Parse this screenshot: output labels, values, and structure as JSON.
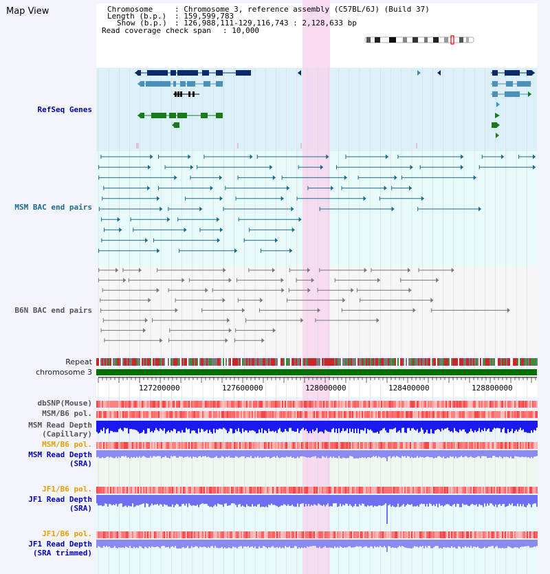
{
  "header": {
    "title": "Map View",
    "chromosome_label": "Chromosome",
    "chromosome_value": ": Chromosome 3, reference assembly (C57BL/6J) (Build 37)",
    "length_label": "Length (b.p.)",
    "length_value": ": 159,599,783",
    "show_label": "Show (b.p.)",
    "show_value": ": 126,988,111-129,116,743 : 2,128,633 bp",
    "coverage_label": "Read coverage check span",
    "coverage_value": ": 10,000"
  },
  "tracks": {
    "refseq": "RefSeq Genes",
    "msm_bac": "MSM BAC end pairs",
    "b6n_bac": "B6N BAC end pairs",
    "repeat": "Repeat",
    "chromosome": "chromosome 3",
    "dbsnp": "dbSNP(Mouse)",
    "msm_b6_pol_1": "MSM/B6 pol.",
    "msm_depth_cap_1": "MSM Read Depth",
    "msm_depth_cap_2": "(Capillary)",
    "msm_b6_pol_2": "MSM/B6 pol.",
    "msm_depth_sra_1": "MSM Read Depth",
    "msm_depth_sra_2": "(SRA)",
    "jf1_b6_pol_1": "JF1/B6 pol.",
    "jf1_depth_sra_1": "JF1 Read Depth",
    "jf1_depth_sra_2": "(SRA)",
    "jf1_b6_pol_2": "JF1/B6 pol.",
    "jf1_depth_trim_1": "JF1 Read Depth",
    "jf1_depth_trim_2": "(SRA trimmed)"
  },
  "axis": {
    "ticks": [
      "127200000",
      "127600000",
      "128000000",
      "128400000",
      "128800000"
    ]
  },
  "colors": {
    "highlight": "#f7d6ee",
    "refseq_bg": "#dcf0fa",
    "bac_bg": "#e8fafa",
    "gene_navy": "#0a2a6a",
    "gene_steel": "#4a90b8",
    "gene_green": "#1a7a1a",
    "chromosome": "#007000",
    "depth_blue": "#1a1aee",
    "depth_light": "#8a8af0"
  }
}
